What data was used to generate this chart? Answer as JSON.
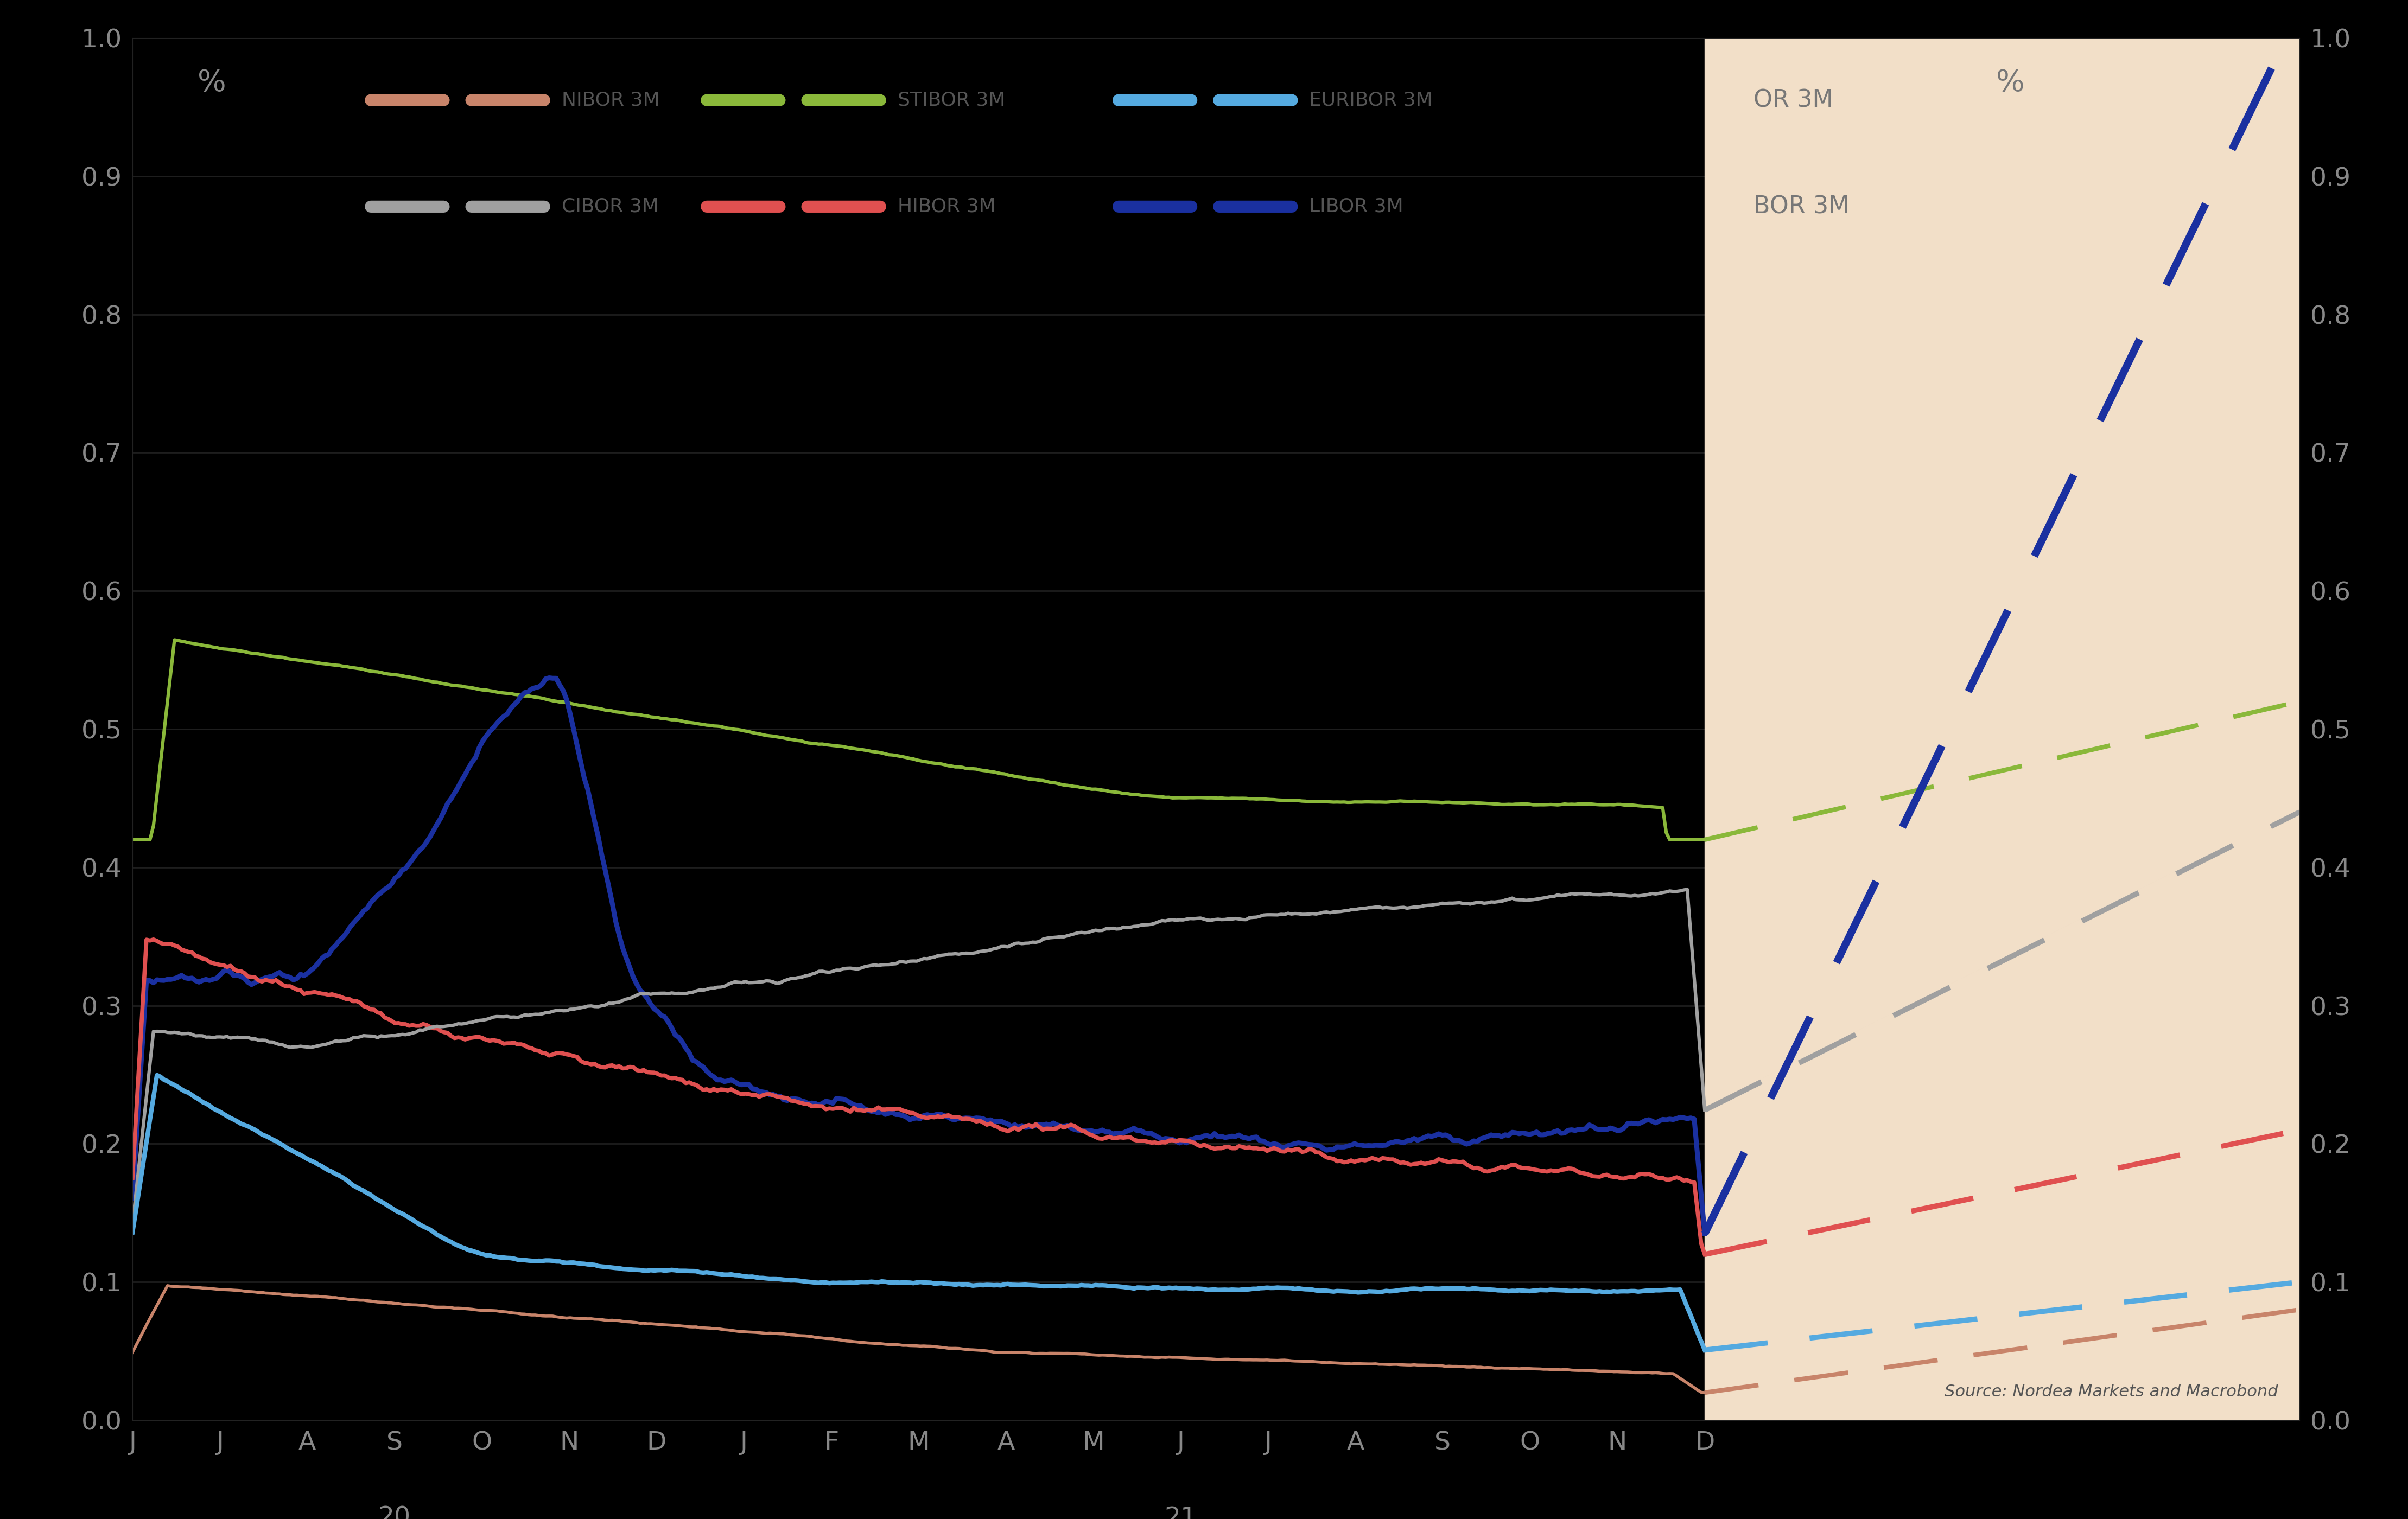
{
  "background_color": "#000000",
  "plot_bg_color": "#000000",
  "forecast_bg_color": "#f2dfc8",
  "text_color": "#888888",
  "grid_color": "#1c1c1c",
  "ylim": [
    0.0,
    1.0
  ],
  "yticks": [
    0.0,
    0.1,
    0.2,
    0.3,
    0.4,
    0.5,
    0.6,
    0.7,
    0.8,
    0.9,
    1.0
  ],
  "xtick_month_labels": [
    "J",
    "J",
    "A",
    "S",
    "O",
    "N",
    "D",
    "J",
    "F",
    "M",
    "A",
    "M",
    "J",
    "J",
    "A",
    "S",
    "O",
    "N",
    "D"
  ],
  "source_text": "Source: Nordea Markets and Macrobond",
  "colors": {
    "nibor": "#c8846a",
    "stibor": "#8ab83a",
    "euribor": "#55aae0",
    "cibor": "#a0a0a0",
    "hibor": "#e05050",
    "libor": "#1a30a0"
  },
  "legend_colors_row1": [
    "#c8846a",
    "#8ab83a",
    "#55aae0"
  ],
  "legend_colors_row2": [
    "#a0a0a0",
    "#e05050",
    "#1a30a0"
  ],
  "forecast_label1": "OR 3M",
  "forecast_label2": "BOR 3M",
  "forecast_pct": "%",
  "pct_label": "%"
}
